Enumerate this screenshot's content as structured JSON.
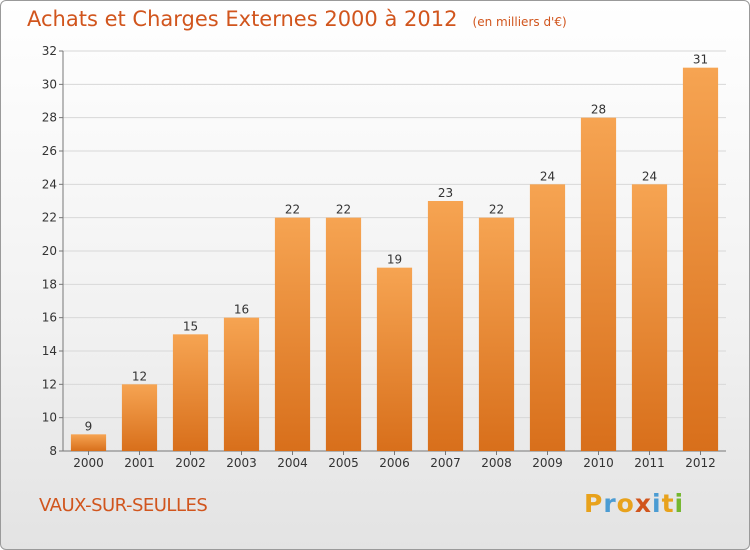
{
  "title": "Achats et Charges Externes 2000 à 2012",
  "subtitle": "(en milliers d'€)",
  "location": "VAUX-SUR-SEULLES",
  "logo": {
    "text": "Proxiti",
    "letter_colors": [
      "#e8a21c",
      "#4b9cd3",
      "#e8a21c",
      "#d1551d",
      "#4b9cd3",
      "#e8a21c",
      "#74b72e"
    ]
  },
  "colors": {
    "bar_top": "#f6a452",
    "bar_bottom": "#d86f1b",
    "accent": "#d1551d",
    "grid": "#d8d8d8"
  },
  "chart_data": {
    "type": "bar",
    "categories": [
      "2000",
      "2001",
      "2002",
      "2003",
      "2004",
      "2005",
      "2006",
      "2007",
      "2008",
      "2009",
      "2010",
      "2011",
      "2012"
    ],
    "values": [
      9,
      12,
      15,
      16,
      22,
      22,
      19,
      23,
      22,
      24,
      28,
      24,
      31
    ],
    "ylim": [
      8,
      32
    ],
    "yticks": [
      8,
      10,
      12,
      14,
      16,
      18,
      20,
      22,
      24,
      26,
      28,
      30,
      32
    ],
    "grid": true,
    "legend": "none"
  }
}
